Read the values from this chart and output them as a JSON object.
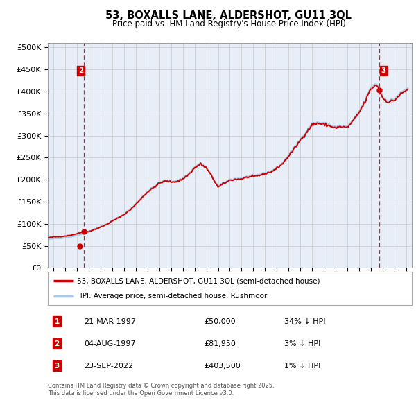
{
  "title": "53, BOXALLS LANE, ALDERSHOT, GU11 3QL",
  "subtitle": "Price paid vs. HM Land Registry's House Price Index (HPI)",
  "legend_property": "53, BOXALLS LANE, ALDERSHOT, GU11 3QL (semi-detached house)",
  "legend_hpi": "HPI: Average price, semi-detached house, Rushmoor",
  "transactions": [
    {
      "num": 1,
      "date": "21-MAR-1997",
      "year": 1997.22,
      "price": 50000,
      "label": "34% ↓ HPI"
    },
    {
      "num": 2,
      "date": "04-AUG-1997",
      "year": 1997.59,
      "price": 81950,
      "label": "3% ↓ HPI"
    },
    {
      "num": 3,
      "date": "23-SEP-2022",
      "year": 2022.73,
      "price": 403500,
      "label": "1% ↓ HPI"
    }
  ],
  "ylim": [
    0,
    510000
  ],
  "yticks": [
    0,
    50000,
    100000,
    150000,
    200000,
    250000,
    300000,
    350000,
    400000,
    450000,
    500000
  ],
  "ytick_labels": [
    "£0",
    "£50K",
    "£100K",
    "£150K",
    "£200K",
    "£250K",
    "£300K",
    "£350K",
    "£400K",
    "£450K",
    "£500K"
  ],
  "xlim_start": 1994.5,
  "xlim_end": 2025.5,
  "hpi_color": "#a8c8e8",
  "property_color": "#cc0000",
  "vline_color": "#cc0000",
  "grid_color": "#c8c8c8",
  "bg_color": "#e8eef8",
  "annotation_box_color": "#cc0000",
  "footnote": "Contains HM Land Registry data © Crown copyright and database right 2025.\nThis data is licensed under the Open Government Licence v3.0."
}
